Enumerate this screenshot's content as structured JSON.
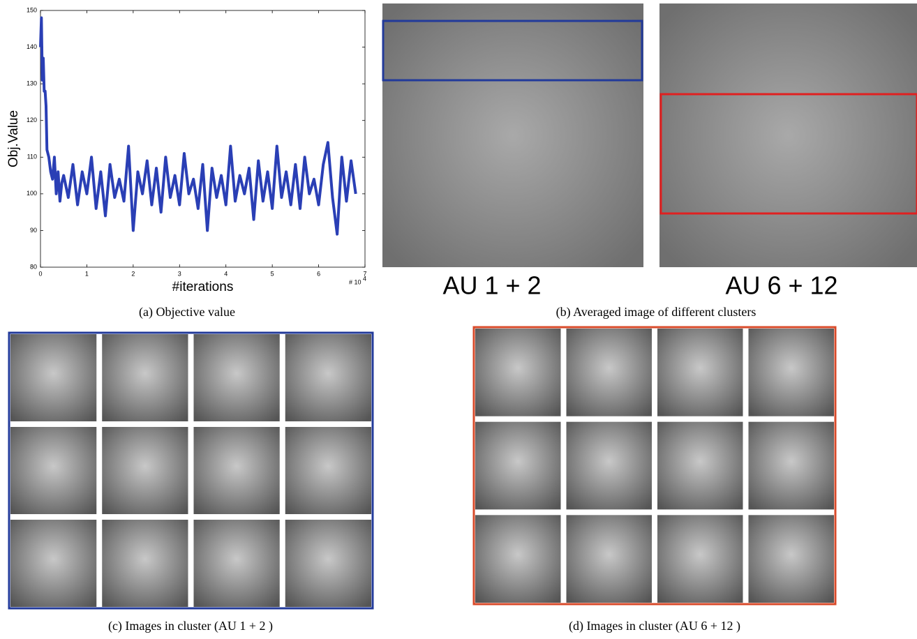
{
  "chart_data": {
    "type": "line",
    "y_label": "Obj.Value",
    "x_label": "#iterations",
    "x_scale_base": "# 10",
    "x_scale_exponent": "4",
    "color": "#2a3fb5",
    "xlim": [
      0,
      7
    ],
    "xticks": [
      0,
      1,
      2,
      3,
      4,
      5,
      6,
      7
    ],
    "ylim": [
      80,
      150
    ],
    "yticks": [
      80,
      90,
      100,
      110,
      120,
      130,
      140,
      150
    ],
    "x": [
      0,
      0.02,
      0.04,
      0.06,
      0.08,
      0.1,
      0.12,
      0.14,
      0.18,
      0.22,
      0.26,
      0.3,
      0.34,
      0.38,
      0.42,
      0.46,
      0.5,
      0.6,
      0.7,
      0.8,
      0.9,
      1.0,
      1.1,
      1.2,
      1.3,
      1.4,
      1.5,
      1.6,
      1.7,
      1.8,
      1.9,
      2.0,
      2.1,
      2.2,
      2.3,
      2.4,
      2.5,
      2.6,
      2.7,
      2.8,
      2.9,
      3.0,
      3.1,
      3.2,
      3.3,
      3.4,
      3.5,
      3.6,
      3.7,
      3.8,
      3.9,
      4.0,
      4.1,
      4.2,
      4.3,
      4.4,
      4.5,
      4.6,
      4.7,
      4.8,
      4.9,
      5.0,
      5.1,
      5.2,
      5.3,
      5.4,
      5.5,
      5.6,
      5.7,
      5.8,
      5.9,
      6.0,
      6.1,
      6.2,
      6.3,
      6.4,
      6.5,
      6.6,
      6.7,
      6.8
    ],
    "values": [
      140,
      148,
      131,
      137,
      128,
      128,
      124,
      112,
      110,
      106,
      104,
      110,
      100,
      106,
      98,
      103,
      105,
      99,
      108,
      97,
      106,
      100,
      110,
      96,
      106,
      94,
      108,
      99,
      104,
      98,
      113,
      90,
      106,
      100,
      109,
      97,
      107,
      95,
      110,
      99,
      105,
      97,
      111,
      100,
      104,
      96,
      108,
      90,
      107,
      99,
      105,
      97,
      113,
      98,
      105,
      100,
      107,
      93,
      109,
      98,
      106,
      96,
      113,
      99,
      106,
      97,
      108,
      96,
      110,
      100,
      104,
      97,
      108,
      114,
      99,
      89,
      110,
      98,
      109,
      100
    ]
  },
  "panel_b": {
    "labels": [
      "AU 1 + 2",
      "AU 6 + 12"
    ]
  },
  "captions": {
    "a": "(a) Objective value",
    "b": "(b) Averaged image of different clusters",
    "c": "(c) Images in cluster (AU 1 + 2 )",
    "d": "(d) Images in cluster (AU 6 + 12 )"
  }
}
